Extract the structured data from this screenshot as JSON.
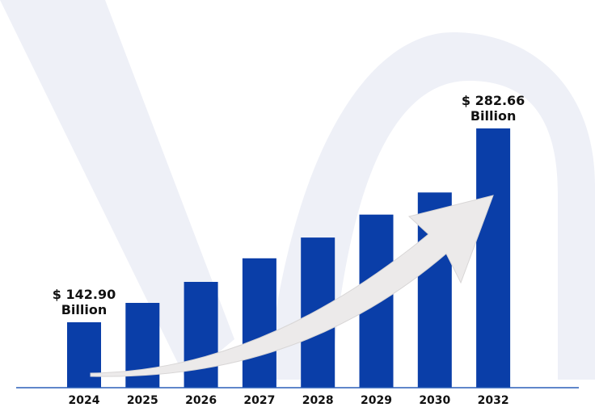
{
  "colors": {
    "bar": "#0a3ea8",
    "baseline": "#2a5fb8",
    "watermark": "#eef0f7",
    "arrow": "#eceaea",
    "text": "#111111"
  },
  "chart_data": {
    "type": "bar",
    "title": "",
    "xlabel": "",
    "ylabel": "",
    "categories": [
      "2024",
      "2025",
      "2026",
      "2027",
      "2028",
      "2029",
      "2030",
      "2032"
    ],
    "values": [
      142.9,
      156.9,
      172.0,
      189.0,
      204.0,
      220.5,
      236.5,
      282.66
    ],
    "ylim": [
      0,
      300
    ],
    "grid": false,
    "legend": "none",
    "annotations": [
      {
        "index": 0,
        "lines": [
          "$ 142.90",
          "Billion"
        ]
      },
      {
        "index": 7,
        "lines": [
          "$ 282.66",
          "Billion"
        ]
      }
    ],
    "trend_arrow": true
  }
}
